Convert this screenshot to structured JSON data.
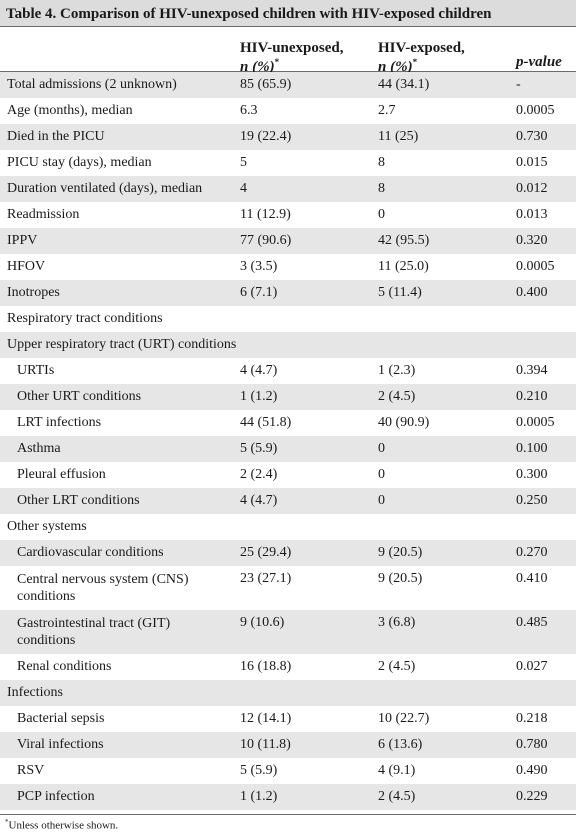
{
  "table": {
    "title": "Table 4. Comparison of HIV-unexposed children with HIV-exposed children",
    "headers": {
      "col1_line1": "HIV-unexposed,",
      "col1_line2": "n (%)",
      "col2_line1": "HIV-exposed,",
      "col2_line2": "n (%)",
      "col_marker": "*",
      "col3": "p-value"
    },
    "rows": [
      {
        "label": "Total admissions (2 unknown)",
        "unexposed": "85 (65.9)",
        "exposed": "44 (34.1)",
        "p": "-"
      },
      {
        "label": "Age (months), median",
        "unexposed": "6.3",
        "exposed": "2.7",
        "p": "0.0005"
      },
      {
        "label": "Died in the PICU",
        "unexposed": "19 (22.4)",
        "exposed": "11 (25)",
        "p": "0.730"
      },
      {
        "label": "PICU stay (days), median",
        "unexposed": "5",
        "exposed": "8",
        "p": "0.015"
      },
      {
        "label": "Duration ventilated (days), median",
        "unexposed": "4",
        "exposed": "8",
        "p": "0.012"
      },
      {
        "label": "Readmission",
        "unexposed": "11 (12.9)",
        "exposed": "0",
        "p": "0.013"
      },
      {
        "label": "IPPV",
        "unexposed": "77 (90.6)",
        "exposed": "42 (95.5)",
        "p": "0.320"
      },
      {
        "label": "HFOV",
        "unexposed": "3 (3.5)",
        "exposed": "11 (25.0)",
        "p": "0.0005"
      },
      {
        "label": "Inotropes",
        "unexposed": "6 (7.1)",
        "exposed": "5 (11.4)",
        "p": "0.400"
      },
      {
        "label": "Respiratory tract conditions",
        "unexposed": "",
        "exposed": "",
        "p": ""
      },
      {
        "label": "Upper respiratory tract (URT) conditions",
        "unexposed": "",
        "exposed": "",
        "p": ""
      },
      {
        "label": "URTIs",
        "unexposed": "4 (4.7)",
        "exposed": "1 (2.3)",
        "p": "0.394"
      },
      {
        "label": "Other URT conditions",
        "unexposed": "1 (1.2)",
        "exposed": "2 (4.5)",
        "p": "0.210"
      },
      {
        "label": "LRT infections",
        "unexposed": "44 (51.8)",
        "exposed": "40 (90.9)",
        "p": "0.0005"
      },
      {
        "label": "Asthma",
        "unexposed": "5 (5.9)",
        "exposed": "0",
        "p": "0.100"
      },
      {
        "label": "Pleural effusion",
        "unexposed": "2 (2.4)",
        "exposed": "0",
        "p": "0.300"
      },
      {
        "label": "Other LRT conditions",
        "unexposed": "4 (4.7)",
        "exposed": "0",
        "p": "0.250"
      },
      {
        "label": "Other systems",
        "unexposed": "",
        "exposed": "",
        "p": ""
      },
      {
        "label": "Cardiovascular conditions",
        "unexposed": "25 (29.4)",
        "exposed": "9 (20.5)",
        "p": "0.270"
      },
      {
        "label": "Central nervous system (CNS) conditions",
        "unexposed": "23 (27.1)",
        "exposed": "9 (20.5)",
        "p": "0.410"
      },
      {
        "label": "Gastrointestinal tract (GIT) conditions",
        "unexposed": "9 (10.6)",
        "exposed": "3 (6.8)",
        "p": "0.485"
      },
      {
        "label": "Renal conditions",
        "unexposed": "16 (18.8)",
        "exposed": "2 (4.5)",
        "p": "0.027"
      },
      {
        "label": "Infections",
        "unexposed": "",
        "exposed": "",
        "p": ""
      },
      {
        "label": "Bacterial sepsis",
        "unexposed": "12 (14.1)",
        "exposed": "10 (22.7)",
        "p": "0.218"
      },
      {
        "label": "Viral infections",
        "unexposed": "10 (11.8)",
        "exposed": "6 (13.6)",
        "p": "0.780"
      },
      {
        "label": "RSV",
        "unexposed": "5 (5.9)",
        "exposed": "4 (9.1)",
        "p": "0.490"
      },
      {
        "label": "PCP infection",
        "unexposed": "1 (1.2)",
        "exposed": "2 (4.5)",
        "p": "0.229"
      }
    ],
    "footnote_marker": "*",
    "footnote": "Unless otherwise shown."
  }
}
